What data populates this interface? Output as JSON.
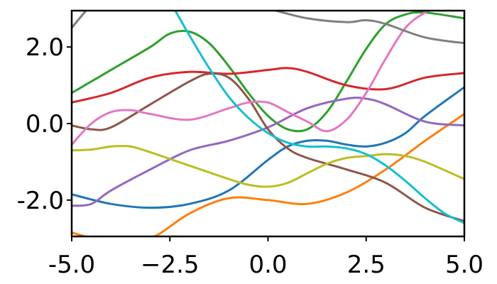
{
  "chart_data": {
    "type": "line",
    "title": "",
    "xlabel": "",
    "ylabel": "",
    "xlim": [
      -5.0,
      5.0
    ],
    "ylim": [
      -2.95,
      2.95
    ],
    "grid": false,
    "legend": "none",
    "x_ticks": [
      {
        "value": -5.0,
        "label": "-5.0"
      },
      {
        "value": -2.5,
        "label": "−2.5"
      },
      {
        "value": 0.0,
        "label": "0.0"
      },
      {
        "value": 2.5,
        "label": "2.5"
      },
      {
        "value": 5.0,
        "label": "5.0"
      }
    ],
    "y_ticks": [
      {
        "value": 2.0,
        "label": "2.0"
      },
      {
        "value": 0.0,
        "label": "0.0"
      },
      {
        "value": -2.0,
        "label": "-2.0"
      }
    ],
    "series": [
      {
        "color": "#1f77b4",
        "x": [
          -5.0,
          -4.0,
          -3.0,
          -2.0,
          -1.0,
          0.0,
          0.5,
          1.0,
          1.5,
          2.0,
          2.5,
          3.0,
          3.5,
          4.0,
          5.0
        ],
        "y": [
          -1.85,
          -2.1,
          -2.2,
          -2.1,
          -1.75,
          -0.95,
          -0.6,
          -0.45,
          -0.45,
          -0.55,
          -0.6,
          -0.5,
          -0.25,
          0.2,
          0.95
        ]
      },
      {
        "color": "#ff7f0e",
        "x": [
          -5.0,
          -4.0,
          -3.0,
          -2.0,
          -1.0,
          0.0,
          1.0,
          2.0,
          3.0,
          4.0,
          5.0
        ],
        "y": [
          -2.85,
          -3.1,
          -3.0,
          -2.35,
          -1.95,
          -2.0,
          -2.1,
          -1.8,
          -1.2,
          -0.45,
          0.25
        ]
      },
      {
        "color": "#2ca02c",
        "x": [
          -5.0,
          -4.0,
          -3.0,
          -2.5,
          -2.0,
          -1.5,
          -1.0,
          -0.5,
          0.0,
          0.5,
          1.0,
          1.5,
          2.0,
          2.5,
          3.0,
          3.5,
          4.0,
          5.0
        ],
        "y": [
          0.8,
          1.4,
          2.0,
          2.35,
          2.4,
          2.1,
          1.5,
          0.8,
          0.2,
          -0.15,
          -0.15,
          0.3,
          1.1,
          1.95,
          2.6,
          2.85,
          2.9,
          2.75
        ]
      },
      {
        "color": "#d62728",
        "x": [
          -5.0,
          -4.0,
          -3.0,
          -2.0,
          -1.0,
          0.0,
          0.5,
          1.0,
          2.0,
          3.0,
          4.0,
          5.0
        ],
        "y": [
          0.55,
          0.8,
          1.2,
          1.35,
          1.3,
          1.4,
          1.45,
          1.35,
          1.0,
          0.9,
          1.2,
          1.32
        ]
      },
      {
        "color": "#9467bd",
        "x": [
          -5.0,
          -4.5,
          -4.0,
          -3.0,
          -2.0,
          -1.0,
          0.0,
          1.0,
          2.0,
          2.5,
          3.0,
          4.0,
          5.0
        ],
        "y": [
          -2.15,
          -2.1,
          -1.75,
          -1.2,
          -0.7,
          -0.45,
          -0.1,
          0.4,
          0.65,
          0.65,
          0.5,
          0.05,
          -0.05
        ]
      },
      {
        "color": "#8c564b",
        "x": [
          -5.0,
          -4.5,
          -4.0,
          -3.0,
          -2.0,
          -1.5,
          -1.0,
          -0.5,
          0.0,
          0.5,
          1.0,
          2.0,
          3.0,
          4.0,
          5.0
        ],
        "y": [
          -0.05,
          -0.15,
          -0.1,
          0.5,
          1.1,
          1.3,
          1.2,
          0.65,
          -0.15,
          -0.65,
          -0.9,
          -1.2,
          -1.55,
          -2.2,
          -2.55
        ]
      },
      {
        "color": "#e377c2",
        "x": [
          -5.0,
          -4.5,
          -4.0,
          -3.5,
          -3.0,
          -2.0,
          -1.0,
          -0.5,
          0.0,
          0.5,
          1.0,
          1.5,
          2.0,
          2.5,
          3.0,
          3.5,
          4.0,
          4.5
        ],
        "y": [
          -0.55,
          0.0,
          0.3,
          0.35,
          0.25,
          0.1,
          0.4,
          0.55,
          0.55,
          0.3,
          0.05,
          -0.2,
          0.1,
          0.8,
          1.7,
          2.5,
          2.9,
          3.1
        ]
      },
      {
        "color": "#7f7f7f",
        "x": [
          -5.0,
          -4.5,
          -4.0,
          -3.0,
          -2.0,
          -1.0,
          0.0,
          1.0,
          2.0,
          2.5,
          3.0,
          4.0,
          5.0
        ],
        "y": [
          2.5,
          3.1,
          3.5,
          3.7,
          3.5,
          3.2,
          3.0,
          2.75,
          2.65,
          2.7,
          2.6,
          2.25,
          2.1
        ]
      },
      {
        "color": "#bcbd22",
        "x": [
          -5.0,
          -4.5,
          -4.0,
          -3.5,
          -3.0,
          -2.0,
          -1.0,
          -0.5,
          0.0,
          0.5,
          1.0,
          1.5,
          2.0,
          2.5,
          3.0,
          3.5,
          4.0,
          5.0
        ],
        "y": [
          -0.7,
          -0.68,
          -0.6,
          -0.6,
          -0.75,
          -1.1,
          -1.45,
          -1.6,
          -1.65,
          -1.55,
          -1.3,
          -1.05,
          -0.9,
          -0.85,
          -0.8,
          -0.85,
          -1.0,
          -1.45
        ]
      },
      {
        "color": "#17becf",
        "x": [
          -2.5,
          -2.0,
          -1.5,
          -1.0,
          -0.5,
          0.0,
          0.5,
          1.0,
          1.5,
          2.0,
          2.5,
          3.0,
          3.5,
          4.0,
          4.5,
          5.0
        ],
        "y": [
          3.2,
          2.3,
          1.45,
          0.7,
          0.15,
          -0.25,
          -0.5,
          -0.6,
          -0.6,
          -0.65,
          -0.8,
          -1.1,
          -1.5,
          -1.95,
          -2.35,
          -2.6
        ]
      }
    ]
  }
}
